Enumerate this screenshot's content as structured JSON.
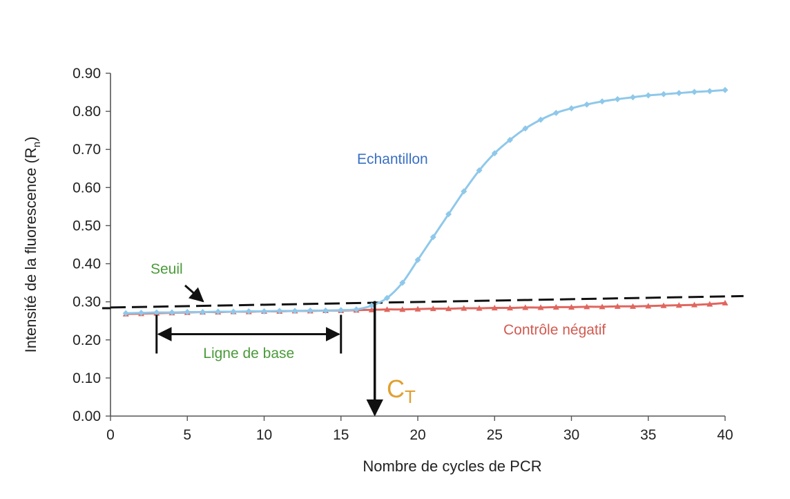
{
  "chart_data": {
    "type": "line",
    "xlabel": "Nombre de cycles de PCR",
    "ylabel": "Intensité de la fluorescence (R",
    "ylabel_sub": "n",
    "ylabel_end": ")",
    "xlim": [
      0,
      40
    ],
    "ylim": [
      0,
      0.9
    ],
    "x_ticks": [
      0,
      5,
      10,
      15,
      20,
      25,
      30,
      35,
      40
    ],
    "x_tick_labels": [
      "0",
      "5",
      "10",
      "15",
      "20",
      "25",
      "30",
      "35",
      "40"
    ],
    "y_ticks": [
      0,
      0.1,
      0.2,
      0.3,
      0.4,
      0.5,
      0.6,
      0.7,
      0.8,
      0.9
    ],
    "y_tick_labels": [
      "0.00",
      "0.10",
      "0.20",
      "0.30",
      "0.40",
      "0.50",
      "0.60",
      "0.70",
      "0.80",
      "0.90"
    ],
    "grid": false,
    "legend": "none",
    "series": [
      {
        "name": "Echantillon",
        "color": "#8ec8ea",
        "label_color": "#3a6fc4",
        "marker": "diamond",
        "x": [
          1,
          2,
          3,
          4,
          5,
          6,
          7,
          8,
          9,
          10,
          11,
          12,
          13,
          14,
          15,
          16,
          17,
          18,
          19,
          20,
          21,
          22,
          23,
          24,
          25,
          26,
          27,
          28,
          29,
          30,
          31,
          32,
          33,
          34,
          35,
          36,
          37,
          38,
          39,
          40
        ],
        "values": [
          0.27,
          0.271,
          0.272,
          0.272,
          0.273,
          0.273,
          0.274,
          0.274,
          0.275,
          0.275,
          0.276,
          0.276,
          0.277,
          0.277,
          0.278,
          0.28,
          0.29,
          0.31,
          0.35,
          0.41,
          0.47,
          0.53,
          0.59,
          0.645,
          0.69,
          0.725,
          0.755,
          0.778,
          0.796,
          0.808,
          0.818,
          0.826,
          0.832,
          0.837,
          0.842,
          0.845,
          0.848,
          0.851,
          0.853,
          0.856
        ]
      },
      {
        "name": "Contrôle négatif",
        "color": "#e0665e",
        "label_color": "#d25a50",
        "marker": "triangle",
        "x": [
          1,
          2,
          3,
          4,
          5,
          6,
          7,
          8,
          9,
          10,
          11,
          12,
          13,
          14,
          15,
          16,
          17,
          18,
          19,
          20,
          21,
          22,
          23,
          24,
          25,
          26,
          27,
          28,
          29,
          30,
          31,
          32,
          33,
          34,
          35,
          36,
          37,
          38,
          39,
          40
        ],
        "values": [
          0.268,
          0.269,
          0.27,
          0.271,
          0.272,
          0.273,
          0.273,
          0.274,
          0.274,
          0.275,
          0.275,
          0.276,
          0.276,
          0.277,
          0.277,
          0.278,
          0.279,
          0.28,
          0.28,
          0.281,
          0.282,
          0.282,
          0.283,
          0.283,
          0.284,
          0.284,
          0.285,
          0.285,
          0.286,
          0.286,
          0.287,
          0.287,
          0.288,
          0.288,
          0.289,
          0.29,
          0.291,
          0.292,
          0.294,
          0.297
        ]
      }
    ],
    "threshold": {
      "name": "Seuil",
      "label_color": "#4a9a3a",
      "x": [
        0,
        41.2
      ],
      "values": [
        0.285,
        0.315
      ]
    },
    "baseline": {
      "label": "Ligne de base",
      "label_color": "#4a9a3a",
      "x_start": 3,
      "x_end": 15,
      "y": 0.215
    },
    "ct": {
      "label": "C",
      "label_sub": "T",
      "label_color": "#e0a030",
      "x": 17.2,
      "y_top": 0.302
    }
  }
}
